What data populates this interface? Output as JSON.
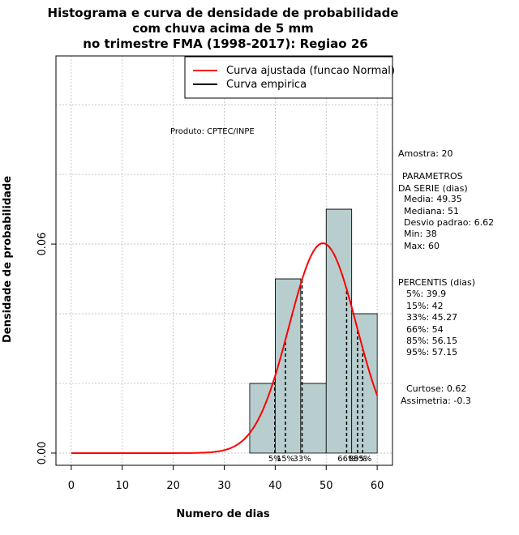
{
  "chart_data": {
    "type": "bar",
    "title": [
      "Histograma e curva de densidade de probabilidade",
      "com chuva acima de 5 mm",
      "no trimestre FMA (1998-2017): Regiao 26"
    ],
    "xlabel": "Numero de dias",
    "ylabel": "Densidade de probabilidade",
    "xlim": [
      -3,
      63
    ],
    "ylim": [
      -0.0035,
      0.114
    ],
    "x_ticks": [
      0,
      10,
      20,
      30,
      40,
      50,
      60
    ],
    "y_ticks": [
      0.0,
      0.06
    ],
    "y_tick_labels": [
      "0.00",
      "0.06"
    ],
    "grid": true,
    "bins": [
      {
        "start": 35,
        "end": 40,
        "density": 0.02
      },
      {
        "start": 40,
        "end": 45,
        "density": 0.05
      },
      {
        "start": 45,
        "end": 50,
        "density": 0.02
      },
      {
        "start": 50,
        "end": 55,
        "density": 0.07
      },
      {
        "start": 55,
        "end": 60,
        "density": 0.04
      }
    ],
    "normal_fit": {
      "name": "Curva ajustada (funcao Normal)",
      "mean": 49.35,
      "sd": 6.62,
      "x_range": [
        0,
        60
      ],
      "color": "#ff0000"
    },
    "empirical_curve": {
      "name": "Curva empirica",
      "color": "#000000"
    },
    "percentile_lines": [
      {
        "label": "5%",
        "value": 39.9
      },
      {
        "label": "15%",
        "value": 42
      },
      {
        "label": "33%",
        "value": 45.27
      },
      {
        "label": "66%",
        "value": 54
      },
      {
        "label": "85%",
        "value": 56.15
      },
      {
        "label": "95%",
        "value": 57.15
      }
    ],
    "legend_position": "top-right",
    "product_label": "Produto: CPTEC/INPE",
    "bar_color": "#b8cece"
  },
  "stats": {
    "amostra": "Amostra: 20",
    "param_title_1": "PARAMETROS",
    "param_title_2": "DA SERIE (dias)",
    "media": "Media: 49.35",
    "mediana": "Mediana: 51",
    "desvio": "Desvio padrao: 6.62",
    "min": "Min: 38",
    "max": "Max: 60",
    "percentis_title": "PERCENTIS (dias)",
    "p5": "5%: 39.9",
    "p15": "15%: 42",
    "p33": "33%: 45.27",
    "p66": "66%: 54",
    "p85": "85%: 56.15",
    "p95": "95%: 57.15",
    "curtose": "Curtose: 0.62",
    "assimetria": "Assimetria: -0.3"
  }
}
